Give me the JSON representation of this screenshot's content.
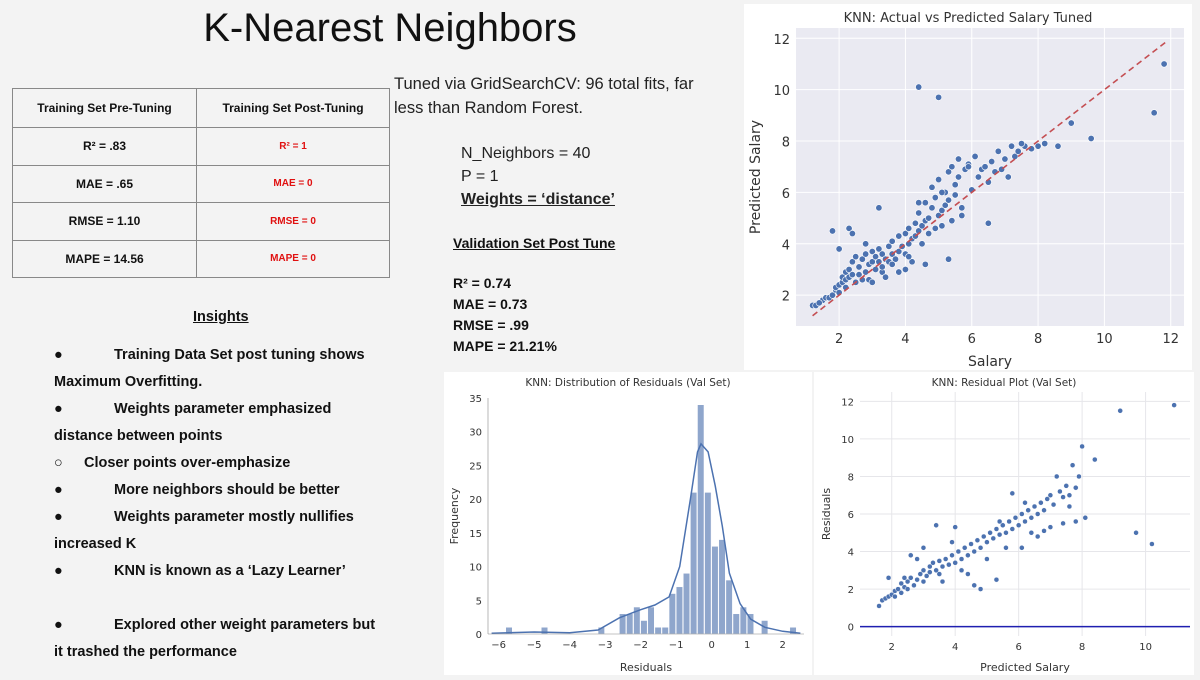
{
  "slide": {
    "title": "K-Nearest Neighbors",
    "tuned_note": "Tuned via GridSearchCV: 96 total fits, far less than Random Forest.",
    "params": [
      "N_Neighbors = 40",
      "P = 1",
      "Weights = ‘distance’"
    ],
    "validation": {
      "heading": "Validation Set Post Tune",
      "lines": [
        "R² = 0.74",
        "MAE = 0.73",
        "RMSE = .99",
        "MAPE = 21.21%"
      ]
    }
  },
  "metrics_table": {
    "headers": [
      "Training Set Pre-Tuning",
      "Training Set Post-Tuning"
    ],
    "rows": [
      [
        "R² = .83",
        "R² = 1"
      ],
      [
        "MAE = .65",
        "MAE = 0"
      ],
      [
        "RMSE = 1.10",
        "RMSE = 0"
      ],
      [
        "MAPE = 14.56",
        "MAPE = 0"
      ]
    ],
    "post_color": "#e01010"
  },
  "insights": {
    "heading": "Insights",
    "lines": [
      {
        "bullet": "●",
        "text": "Training Data Set post tuning shows"
      },
      {
        "bullet": "",
        "text": "Maximum Overfitting."
      },
      {
        "bullet": "●",
        "text": "Weights parameter emphasized"
      },
      {
        "bullet": "",
        "text": "distance between points"
      },
      {
        "bullet": "○",
        "text": "Closer points over-emphasize",
        "sub": true
      },
      {
        "bullet": "●",
        "text": "More neighbors should be better"
      },
      {
        "bullet": "●",
        "text": "Weights parameter mostly nullifies"
      },
      {
        "bullet": "",
        "text": "increased K"
      },
      {
        "bullet": "●",
        "text": "KNN is known as a ‘Lazy Learner’"
      },
      {
        "bullet": "",
        "text": ""
      },
      {
        "bullet": "●",
        "text": "Explored other weight parameters but"
      },
      {
        "bullet": "",
        "text": "it trashed the performance"
      }
    ]
  },
  "chart_data": [
    {
      "type": "scatter",
      "title": "KNN: Actual vs Predicted Salary Tuned",
      "xlabel": "Salary",
      "ylabel": "Predicted Salary",
      "xlim": [
        0.7,
        12.4
      ],
      "ylim": [
        0.8,
        12.4
      ],
      "xticks": [
        2,
        4,
        6,
        8,
        10,
        12
      ],
      "yticks": [
        2,
        4,
        6,
        8,
        10,
        12
      ],
      "grid": true,
      "point_color": "#4c72b0",
      "reference_line": {
        "from": [
          1.2,
          1.2
        ],
        "to": [
          11.9,
          11.9
        ],
        "color": "#c44e52",
        "style": "dashed"
      },
      "points": [
        [
          1.2,
          1.6
        ],
        [
          1.3,
          1.6
        ],
        [
          1.5,
          1.8
        ],
        [
          1.6,
          1.9
        ],
        [
          1.7,
          1.9
        ],
        [
          1.8,
          2.0
        ],
        [
          1.9,
          2.2
        ],
        [
          1.9,
          2.3
        ],
        [
          2.0,
          2.4
        ],
        [
          2.0,
          2.1
        ],
        [
          2.1,
          2.5
        ],
        [
          2.1,
          2.7
        ],
        [
          2.2,
          2.6
        ],
        [
          2.2,
          2.9
        ],
        [
          2.3,
          2.7
        ],
        [
          2.3,
          3.0
        ],
        [
          2.4,
          2.8
        ],
        [
          2.4,
          3.3
        ],
        [
          2.5,
          2.5
        ],
        [
          2.5,
          3.5
        ],
        [
          2.6,
          3.1
        ],
        [
          2.6,
          2.8
        ],
        [
          2.7,
          3.4
        ],
        [
          2.7,
          2.6
        ],
        [
          2.8,
          3.6
        ],
        [
          2.8,
          2.9
        ],
        [
          2.9,
          3.2
        ],
        [
          2.9,
          2.6
        ],
        [
          3.0,
          3.7
        ],
        [
          3.0,
          3.3
        ],
        [
          3.1,
          3.0
        ],
        [
          3.1,
          3.5
        ],
        [
          3.2,
          3.8
        ],
        [
          3.2,
          3.3
        ],
        [
          3.3,
          2.9
        ],
        [
          3.3,
          3.6
        ],
        [
          3.3,
          3.1
        ],
        [
          3.4,
          3.4
        ],
        [
          3.4,
          2.7
        ],
        [
          3.5,
          3.9
        ],
        [
          3.5,
          3.3
        ],
        [
          3.6,
          3.6
        ],
        [
          3.6,
          4.1
        ],
        [
          3.7,
          3.4
        ],
        [
          3.8,
          4.3
        ],
        [
          3.8,
          3.7
        ],
        [
          3.9,
          3.9
        ],
        [
          4.0,
          4.4
        ],
        [
          4.0,
          3.6
        ],
        [
          4.1,
          4.6
        ],
        [
          4.1,
          4.0
        ],
        [
          4.2,
          4.2
        ],
        [
          4.2,
          3.3
        ],
        [
          4.3,
          4.8
        ],
        [
          4.3,
          4.3
        ],
        [
          4.4,
          4.5
        ],
        [
          4.4,
          5.2
        ],
        [
          4.5,
          4.0
        ],
        [
          4.5,
          4.7
        ],
        [
          4.6,
          5.6
        ],
        [
          4.6,
          4.9
        ],
        [
          4.7,
          5.0
        ],
        [
          4.7,
          4.4
        ],
        [
          4.8,
          5.4
        ],
        [
          4.8,
          6.2
        ],
        [
          4.9,
          4.6
        ],
        [
          4.9,
          5.8
        ],
        [
          5.0,
          5.1
        ],
        [
          5.0,
          6.5
        ],
        [
          5.1,
          5.3
        ],
        [
          5.1,
          4.7
        ],
        [
          5.2,
          6.0
        ],
        [
          5.2,
          5.5
        ],
        [
          5.3,
          6.8
        ],
        [
          5.3,
          5.7
        ],
        [
          5.4,
          7.0
        ],
        [
          5.4,
          4.9
        ],
        [
          5.5,
          6.3
        ],
        [
          5.5,
          5.9
        ],
        [
          5.6,
          7.3
        ],
        [
          5.6,
          6.6
        ],
        [
          5.7,
          5.4
        ],
        [
          5.8,
          6.9
        ],
        [
          5.9,
          7.1
        ],
        [
          6.0,
          6.1
        ],
        [
          6.1,
          7.4
        ],
        [
          6.2,
          6.6
        ],
        [
          6.3,
          6.9
        ],
        [
          6.4,
          7.0
        ],
        [
          6.5,
          6.4
        ],
        [
          6.6,
          7.2
        ],
        [
          6.7,
          6.8
        ],
        [
          6.8,
          7.6
        ],
        [
          6.9,
          6.9
        ],
        [
          7.0,
          7.3
        ],
        [
          7.1,
          6.6
        ],
        [
          7.2,
          7.8
        ],
        [
          7.3,
          7.4
        ],
        [
          7.4,
          7.6
        ],
        [
          7.6,
          7.8
        ],
        [
          7.8,
          7.7
        ],
        [
          8.0,
          7.8
        ],
        [
          8.2,
          7.9
        ],
        [
          8.6,
          7.8
        ],
        [
          9.0,
          8.7
        ],
        [
          9.6,
          8.1
        ],
        [
          11.5,
          9.1
        ],
        [
          11.8,
          11.0
        ],
        [
          4.4,
          10.1
        ],
        [
          5.0,
          9.7
        ],
        [
          1.8,
          4.5
        ],
        [
          2.3,
          4.6
        ],
        [
          2.0,
          3.8
        ],
        [
          2.8,
          4.0
        ],
        [
          3.2,
          5.4
        ],
        [
          4.4,
          5.6
        ],
        [
          4.6,
          3.2
        ],
        [
          5.3,
          3.4
        ],
        [
          2.4,
          4.4
        ],
        [
          3.8,
          2.9
        ],
        [
          4.1,
          3.5
        ],
        [
          5.7,
          5.1
        ],
        [
          6.5,
          4.8
        ],
        [
          6.9,
          6.9
        ],
        [
          7.5,
          7.9
        ],
        [
          2.2,
          2.3
        ],
        [
          1.4,
          1.7
        ],
        [
          3.0,
          2.5
        ],
        [
          4.0,
          3.0
        ],
        [
          3.6,
          3.2
        ],
        [
          5.1,
          6.0
        ],
        [
          5.9,
          7.0
        ]
      ]
    },
    {
      "type": "histogram",
      "title": "KNN: Distribution of Residuals (Val Set)",
      "xlabel": "Residuals",
      "ylabel": "Frequency",
      "xlim": [
        -6.3,
        2.6
      ],
      "ylim": [
        0,
        35
      ],
      "xticks": [
        -6,
        -5,
        -4,
        -3,
        -2,
        -1,
        0,
        1,
        2
      ],
      "yticks": [
        0,
        5,
        10,
        15,
        20,
        25,
        30,
        35
      ],
      "bar_color": "#8fa6cc",
      "kde_color": "#4c72b0",
      "bins": [
        {
          "x0": -5.8,
          "x1": -5.6,
          "count": 1
        },
        {
          "x0": -4.8,
          "x1": -4.6,
          "count": 1
        },
        {
          "x0": -3.2,
          "x1": -3.0,
          "count": 1
        },
        {
          "x0": -2.6,
          "x1": -2.4,
          "count": 3
        },
        {
          "x0": -2.4,
          "x1": -2.2,
          "count": 3
        },
        {
          "x0": -2.2,
          "x1": -2.0,
          "count": 4
        },
        {
          "x0": -2.0,
          "x1": -1.8,
          "count": 2
        },
        {
          "x0": -1.8,
          "x1": -1.6,
          "count": 4
        },
        {
          "x0": -1.6,
          "x1": -1.4,
          "count": 1
        },
        {
          "x0": -1.4,
          "x1": -1.2,
          "count": 1
        },
        {
          "x0": -1.2,
          "x1": -1.0,
          "count": 6
        },
        {
          "x0": -1.0,
          "x1": -0.8,
          "count": 7
        },
        {
          "x0": -0.8,
          "x1": -0.6,
          "count": 9
        },
        {
          "x0": -0.6,
          "x1": -0.4,
          "count": 21
        },
        {
          "x0": -0.4,
          "x1": -0.2,
          "count": 34
        },
        {
          "x0": -0.2,
          "x1": 0.0,
          "count": 21
        },
        {
          "x0": 0.0,
          "x1": 0.2,
          "count": 13
        },
        {
          "x0": 0.2,
          "x1": 0.4,
          "count": 14
        },
        {
          "x0": 0.4,
          "x1": 0.6,
          "count": 8
        },
        {
          "x0": 0.6,
          "x1": 0.8,
          "count": 3
        },
        {
          "x0": 0.8,
          "x1": 1.0,
          "count": 4
        },
        {
          "x0": 1.0,
          "x1": 1.2,
          "count": 3
        },
        {
          "x0": 1.4,
          "x1": 1.6,
          "count": 2
        },
        {
          "x0": 2.2,
          "x1": 2.4,
          "count": 1
        }
      ],
      "kde": [
        [
          -6.2,
          0.1
        ],
        [
          -5.0,
          0.3
        ],
        [
          -4.0,
          0.2
        ],
        [
          -3.2,
          0.6
        ],
        [
          -2.6,
          2.4
        ],
        [
          -2.0,
          3.6
        ],
        [
          -1.6,
          4.3
        ],
        [
          -1.2,
          5.5
        ],
        [
          -0.9,
          10
        ],
        [
          -0.6,
          20
        ],
        [
          -0.4,
          27
        ],
        [
          -0.3,
          28.2
        ],
        [
          -0.1,
          27
        ],
        [
          0.1,
          22
        ],
        [
          0.3,
          16
        ],
        [
          0.5,
          9
        ],
        [
          0.8,
          4.5
        ],
        [
          1.1,
          2.2
        ],
        [
          1.5,
          1.0
        ],
        [
          2.0,
          0.4
        ],
        [
          2.5,
          0.1
        ]
      ]
    },
    {
      "type": "scatter",
      "title": "KNN: Residual Plot (Val Set)",
      "xlabel": "Predicted Salary",
      "ylabel": "Residuals",
      "xlim": [
        1.0,
        11.4
      ],
      "ylim": [
        -0.5,
        12.5
      ],
      "xticks": [
        2,
        4,
        6,
        8,
        10
      ],
      "yticks": [
        0,
        2,
        4,
        6,
        8,
        10,
        12
      ],
      "grid": true,
      "point_color": "#4c72b0",
      "zero_line_color": "#1f1fb0",
      "points": [
        [
          1.6,
          1.1
        ],
        [
          1.7,
          1.4
        ],
        [
          1.8,
          1.5
        ],
        [
          1.9,
          1.6
        ],
        [
          2.0,
          1.7
        ],
        [
          2.1,
          1.6
        ],
        [
          2.1,
          1.9
        ],
        [
          2.2,
          2.0
        ],
        [
          2.3,
          1.8
        ],
        [
          2.3,
          2.3
        ],
        [
          2.4,
          2.1
        ],
        [
          2.5,
          2.4
        ],
        [
          2.5,
          2.0
        ],
        [
          2.6,
          2.6
        ],
        [
          2.7,
          2.2
        ],
        [
          2.8,
          2.5
        ],
        [
          2.9,
          2.8
        ],
        [
          3.0,
          2.4
        ],
        [
          3.0,
          3.0
        ],
        [
          3.1,
          2.7
        ],
        [
          3.2,
          3.2
        ],
        [
          3.2,
          2.9
        ],
        [
          3.3,
          3.4
        ],
        [
          3.4,
          3.0
        ],
        [
          3.5,
          3.5
        ],
        [
          3.5,
          2.8
        ],
        [
          3.6,
          3.2
        ],
        [
          3.7,
          3.6
        ],
        [
          3.8,
          3.3
        ],
        [
          3.9,
          3.8
        ],
        [
          4.0,
          3.4
        ],
        [
          4.1,
          4.0
        ],
        [
          4.2,
          3.6
        ],
        [
          4.3,
          4.2
        ],
        [
          4.4,
          3.8
        ],
        [
          4.5,
          4.4
        ],
        [
          4.6,
          4.0
        ],
        [
          4.7,
          4.6
        ],
        [
          4.8,
          4.2
        ],
        [
          4.9,
          4.8
        ],
        [
          5.0,
          4.5
        ],
        [
          5.1,
          5.0
        ],
        [
          5.2,
          4.7
        ],
        [
          5.3,
          5.2
        ],
        [
          5.4,
          4.9
        ],
        [
          5.5,
          5.4
        ],
        [
          5.6,
          5.0
        ],
        [
          5.7,
          5.6
        ],
        [
          5.8,
          5.2
        ],
        [
          5.9,
          5.8
        ],
        [
          6.0,
          5.4
        ],
        [
          6.1,
          6.0
        ],
        [
          6.2,
          5.6
        ],
        [
          6.3,
          6.2
        ],
        [
          6.4,
          5.8
        ],
        [
          6.5,
          6.4
        ],
        [
          6.6,
          6.0
        ],
        [
          6.7,
          6.6
        ],
        [
          6.8,
          6.2
        ],
        [
          6.9,
          6.8
        ],
        [
          7.0,
          7.0
        ],
        [
          7.1,
          6.5
        ],
        [
          7.2,
          8.0
        ],
        [
          7.3,
          7.2
        ],
        [
          7.4,
          6.9
        ],
        [
          7.5,
          7.5
        ],
        [
          7.6,
          6.4
        ],
        [
          7.7,
          8.6
        ],
        [
          7.8,
          7.4
        ],
        [
          8.0,
          9.6
        ],
        [
          7.9,
          8.0
        ],
        [
          8.4,
          8.9
        ],
        [
          9.2,
          11.5
        ],
        [
          9.7,
          5.0
        ],
        [
          10.2,
          4.4
        ],
        [
          10.9,
          11.8
        ],
        [
          3.4,
          5.4
        ],
        [
          4.0,
          5.3
        ],
        [
          4.6,
          2.2
        ],
        [
          4.8,
          2.0
        ],
        [
          5.3,
          2.5
        ],
        [
          5.8,
          7.1
        ],
        [
          6.1,
          4.2
        ],
        [
          6.6,
          4.8
        ],
        [
          3.0,
          4.2
        ],
        [
          2.6,
          3.8
        ],
        [
          2.8,
          3.6
        ],
        [
          1.9,
          2.6
        ],
        [
          4.4,
          2.8
        ],
        [
          5.0,
          3.6
        ],
        [
          5.6,
          4.2
        ],
        [
          6.4,
          5.0
        ],
        [
          7.0,
          5.3
        ],
        [
          7.4,
          5.5
        ],
        [
          7.8,
          5.6
        ],
        [
          8.1,
          5.8
        ],
        [
          6.8,
          5.1
        ],
        [
          3.6,
          2.4
        ],
        [
          4.2,
          3.0
        ],
        [
          2.4,
          2.6
        ],
        [
          3.9,
          4.5
        ],
        [
          5.4,
          5.6
        ],
        [
          6.2,
          6.6
        ],
        [
          7.6,
          7.0
        ]
      ]
    }
  ]
}
